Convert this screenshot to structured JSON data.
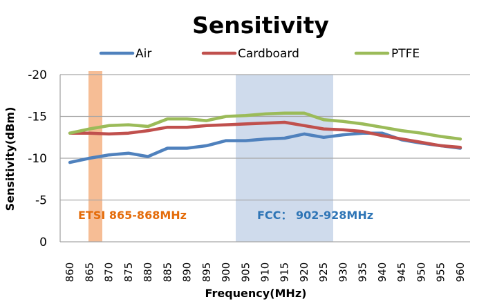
{
  "chart_data": {
    "type": "line",
    "title": "Sensitivity",
    "xlabel": "Frequency(MHz)",
    "ylabel": "Sensitivity(dBm)",
    "ylim": [
      0,
      -20
    ],
    "yticks": [
      "0",
      "-5",
      "-10",
      "-15",
      "-20"
    ],
    "ytick_values": [
      0,
      -5,
      -10,
      -15,
      -20
    ],
    "grid": true,
    "legend": "top",
    "categories": [
      "860",
      "865",
      "870",
      "875",
      "880",
      "885",
      "890",
      "895",
      "900",
      "905",
      "910",
      "915",
      "920",
      "925",
      "930",
      "935",
      "940",
      "945",
      "950",
      "955",
      "960"
    ],
    "series": [
      {
        "name": "Air",
        "color": "#4f81bd",
        "values": [
          -9.5,
          -10.0,
          -10.4,
          -10.6,
          -10.2,
          -11.2,
          -11.2,
          -11.5,
          -12.1,
          -12.1,
          -12.3,
          -12.4,
          -12.9,
          -12.5,
          -12.8,
          -13.0,
          -13.0,
          -12.2,
          -11.8,
          -11.5,
          -11.2
        ]
      },
      {
        "name": "Cardboard",
        "color": "#c0504d",
        "values": [
          -13.0,
          -13.0,
          -12.9,
          -13.0,
          -13.3,
          -13.7,
          -13.7,
          -13.9,
          -14.0,
          -14.1,
          -14.2,
          -14.3,
          -13.9,
          -13.5,
          -13.4,
          -13.2,
          -12.7,
          -12.3,
          -11.9,
          -11.5,
          -11.3
        ]
      },
      {
        "name": "PTFE",
        "color": "#9bbb59",
        "values": [
          -13.0,
          -13.5,
          -13.9,
          -14.0,
          -13.8,
          -14.7,
          -14.7,
          -14.5,
          -15.0,
          -15.1,
          -15.3,
          -15.4,
          -15.4,
          -14.6,
          -14.4,
          -14.1,
          -13.7,
          -13.3,
          -13.0,
          -12.6,
          -12.3
        ]
      }
    ],
    "bands": [
      {
        "label": "ETSI 865-868MHz",
        "from": 865,
        "to": 868,
        "fill": "#f4b183",
        "text_color": "#e46c0a"
      },
      {
        "label": "FCC： 902-928MHz",
        "from": 902,
        "to": 928,
        "fill": "#cfdbec",
        "text_color": "#2e75b6"
      }
    ]
  }
}
